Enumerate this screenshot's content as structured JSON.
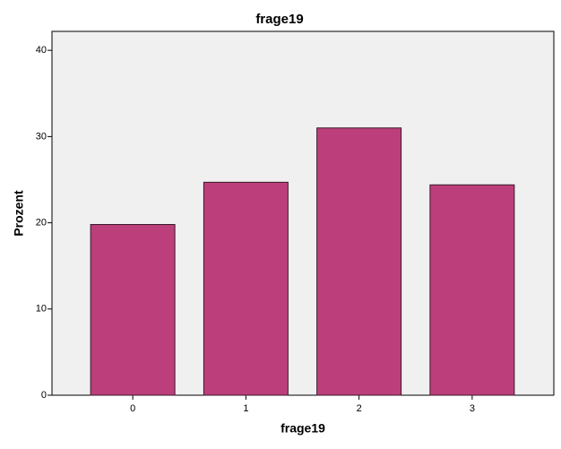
{
  "chart_data": {
    "type": "bar",
    "title": "frage19",
    "x_label": "frage19",
    "y_label": "Prozent",
    "categories": [
      "0",
      "1",
      "2",
      "3"
    ],
    "values": [
      19.8,
      24.7,
      31.0,
      24.4
    ],
    "color": "#bc3f7c",
    "ylim": [
      0,
      42.2
    ],
    "yticks": [
      0,
      10,
      20,
      30,
      40
    ]
  }
}
